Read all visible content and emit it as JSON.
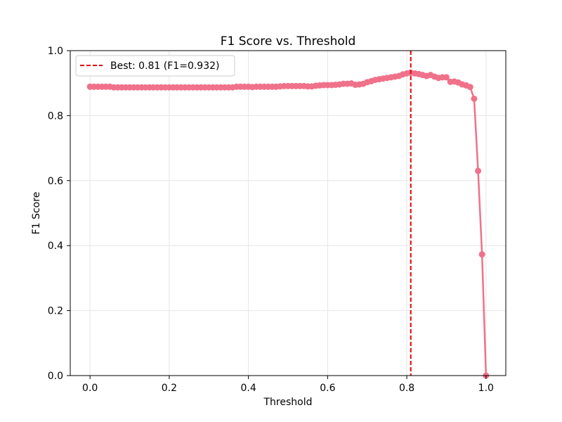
{
  "chart_data": {
    "type": "line",
    "title": "F1 Score vs. Threshold",
    "xlabel": "Threshold",
    "ylabel": "F1 Score",
    "xlim": [
      -0.05,
      1.05
    ],
    "ylim": [
      0,
      1
    ],
    "xticks": [
      0.0,
      0.2,
      0.4,
      0.6,
      0.8,
      1.0
    ],
    "xtick_labels": [
      "0.0",
      "0.2",
      "0.4",
      "0.6",
      "0.8",
      "1.0"
    ],
    "yticks": [
      0.0,
      0.2,
      0.4,
      0.6,
      0.8,
      1.0
    ],
    "ytick_labels": [
      "0.0",
      "0.2",
      "0.4",
      "0.6",
      "0.8",
      "1.0"
    ],
    "grid": true,
    "legend_position": "top-left",
    "series": [
      {
        "color": "#f0718a",
        "marker": "circle",
        "x": [
          0.0,
          0.01,
          0.02,
          0.03,
          0.04,
          0.05,
          0.06,
          0.07,
          0.08,
          0.09,
          0.1,
          0.11,
          0.12,
          0.13,
          0.14,
          0.15,
          0.16,
          0.17,
          0.18,
          0.19,
          0.2,
          0.21,
          0.22,
          0.23,
          0.24,
          0.25,
          0.26,
          0.27,
          0.28,
          0.29,
          0.3,
          0.31,
          0.32,
          0.33,
          0.34,
          0.35,
          0.36,
          0.37,
          0.38,
          0.39,
          0.4,
          0.41,
          0.42,
          0.43,
          0.44,
          0.45,
          0.46,
          0.47,
          0.48,
          0.49,
          0.5,
          0.51,
          0.52,
          0.53,
          0.54,
          0.55,
          0.56,
          0.57,
          0.58,
          0.59,
          0.6,
          0.61,
          0.62,
          0.63,
          0.64,
          0.65,
          0.66,
          0.67,
          0.68,
          0.69,
          0.7,
          0.71,
          0.72,
          0.73,
          0.74,
          0.75,
          0.76,
          0.77,
          0.78,
          0.79,
          0.8,
          0.81,
          0.82,
          0.83,
          0.84,
          0.85,
          0.86,
          0.87,
          0.88,
          0.89,
          0.9,
          0.91,
          0.92,
          0.93,
          0.94,
          0.95,
          0.96,
          0.97,
          0.98,
          0.99,
          1.0
        ],
        "y": [
          0.889,
          0.889,
          0.889,
          0.889,
          0.889,
          0.889,
          0.887,
          0.887,
          0.887,
          0.887,
          0.887,
          0.887,
          0.887,
          0.887,
          0.887,
          0.887,
          0.887,
          0.887,
          0.887,
          0.887,
          0.887,
          0.887,
          0.887,
          0.887,
          0.887,
          0.887,
          0.887,
          0.887,
          0.887,
          0.887,
          0.887,
          0.887,
          0.887,
          0.887,
          0.887,
          0.887,
          0.887,
          0.889,
          0.889,
          0.889,
          0.889,
          0.888,
          0.889,
          0.889,
          0.889,
          0.889,
          0.889,
          0.889,
          0.89,
          0.891,
          0.891,
          0.891,
          0.891,
          0.891,
          0.891,
          0.89,
          0.89,
          0.892,
          0.893,
          0.894,
          0.894,
          0.894,
          0.895,
          0.896,
          0.898,
          0.898,
          0.899,
          0.895,
          0.896,
          0.898,
          0.903,
          0.906,
          0.91,
          0.912,
          0.914,
          0.916,
          0.918,
          0.92,
          0.922,
          0.927,
          0.93,
          0.932,
          0.93,
          0.928,
          0.925,
          0.922,
          0.925,
          0.92,
          0.916,
          0.918,
          0.918,
          0.904,
          0.905,
          0.902,
          0.896,
          0.893,
          0.888,
          0.852,
          0.63,
          0.373,
          0.0
        ]
      }
    ],
    "reference_line": {
      "orientation": "vertical",
      "x": 0.81,
      "style": "dashed",
      "color": "#e00000",
      "label": "Best: 0.81 (F1=0.932)"
    }
  }
}
